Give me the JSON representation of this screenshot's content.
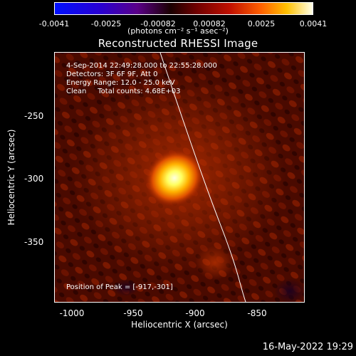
{
  "colorbar": {
    "ticks": [
      "-0.0041",
      "-0.0025",
      "-0.00082",
      "0.00082",
      "0.0025",
      "0.0041"
    ],
    "unit": "(photons cm⁻² s⁻¹ asec⁻²)"
  },
  "title": "Reconstructed RHESSI Image",
  "annotations": {
    "time": "4-Sep-2014 22:49:28.000 to 22:55:28.000",
    "detectors": "Detectors: 3F 6F 9F, Att 0",
    "energy": "Energy Range: 12.0 - 25.0 keV",
    "clean": "Clean     Total counts: 4.68E+03",
    "peak": "Position of Peak = [-917,-301]"
  },
  "axes": {
    "xlabel": "Heliocentric X (arcsec)",
    "ylabel": "Heliocentric Y (arcsec)",
    "xticks": [
      "-1000",
      "-950",
      "-900",
      "-850"
    ],
    "yticks": [
      "-250",
      "-300",
      "-350"
    ]
  },
  "footer": "16-May-2022 19:29"
}
